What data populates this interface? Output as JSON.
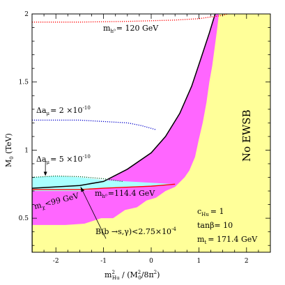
{
  "chart_data": {
    "type": "area",
    "xlabel": {
      "main": "m",
      "sup": "2",
      "sub": "Hu",
      "rest": " / (M",
      "sup2": "2",
      "sub2": "0",
      "rest2": "/8π",
      "sup3": "2",
      "end": ")"
    },
    "ylabel": {
      "main": "M",
      "sub": "0",
      "rest": " (TeV)"
    },
    "xlim": [
      -2.5,
      2.5
    ],
    "ylim": [
      0.25,
      2.0
    ],
    "x_ticks": [
      -2,
      -1,
      0,
      1,
      2
    ],
    "x_tick_labels": [
      "-2",
      "-1",
      "0",
      "1",
      "2"
    ],
    "y_ticks": [
      0.5,
      1.0,
      1.5,
      2.0
    ],
    "y_tick_labels": [
      "0.5",
      "1",
      "1.5",
      "2"
    ],
    "colors": {
      "no_ewsb": "#ffff99",
      "excluded": "#ff66ff",
      "gmuon_band": "#aaffff",
      "boundary": "#000000",
      "higgs_contour": "#ff0000",
      "gmuon_contour": "#0000cc",
      "dark_contour": "#006633"
    },
    "regions": {
      "no_ewsb_boundary": [
        [
          -2.5,
          0.25
        ],
        [
          -2.5,
          0.72
        ],
        [
          -1.5,
          0.74
        ],
        [
          -1.0,
          0.77
        ],
        [
          -0.5,
          0.86
        ],
        [
          0.0,
          0.98
        ],
        [
          0.3,
          1.1
        ],
        [
          0.6,
          1.27
        ],
        [
          0.85,
          1.47
        ],
        [
          1.05,
          1.68
        ],
        [
          1.22,
          1.86
        ],
        [
          1.34,
          2.0
        ]
      ],
      "excluded_edge": [
        [
          -2.5,
          0.45
        ],
        [
          -2.1,
          0.45
        ],
        [
          -1.8,
          0.45
        ],
        [
          -1.4,
          0.46
        ],
        [
          -1.05,
          0.5
        ],
        [
          -0.8,
          0.5
        ],
        [
          -0.55,
          0.56
        ],
        [
          -0.3,
          0.58
        ],
        [
          -0.1,
          0.63
        ],
        [
          0.1,
          0.65
        ],
        [
          0.3,
          0.7
        ],
        [
          0.5,
          0.73
        ],
        [
          0.7,
          0.8
        ],
        [
          0.8,
          0.85
        ],
        [
          0.92,
          0.95
        ],
        [
          1.0,
          1.08
        ],
        [
          1.08,
          1.2
        ],
        [
          1.16,
          1.35
        ],
        [
          1.22,
          1.5
        ],
        [
          1.28,
          1.62
        ],
        [
          1.33,
          1.75
        ],
        [
          1.38,
          1.88
        ],
        [
          1.42,
          2.0
        ]
      ],
      "gmuon_band_top": [
        [
          -2.5,
          0.8
        ],
        [
          -2.0,
          0.81
        ],
        [
          -1.5,
          0.8
        ],
        [
          -1.0,
          0.78
        ]
      ],
      "gmuon_band_bottom": [
        [
          -2.5,
          0.7
        ],
        [
          -1.5,
          0.7
        ],
        [
          -1.0,
          0.72
        ],
        [
          0.0,
          0.74
        ],
        [
          0.5,
          0.75
        ]
      ]
    },
    "series": [
      {
        "name": "m_h0 = 120 GeV",
        "style": "dotted",
        "color": "#ff0000",
        "points": [
          [
            -2.5,
            1.94
          ],
          [
            -1.5,
            1.94
          ],
          [
            -0.5,
            1.945
          ],
          [
            0.5,
            1.955
          ],
          [
            1.0,
            1.965
          ],
          [
            1.5,
            1.99
          ],
          [
            1.6,
            2.0
          ]
        ]
      },
      {
        "name": "Δa_μ = 2 ×10^-10",
        "style": "dotted",
        "color": "#0000cc",
        "points": [
          [
            -2.5,
            1.22
          ],
          [
            -1.5,
            1.22
          ],
          [
            -1.0,
            1.21
          ],
          [
            -0.5,
            1.2
          ],
          [
            -0.2,
            1.18
          ],
          [
            0.1,
            1.15
          ]
        ]
      },
      {
        "name": "Δa_μ = 5 ×10^-10",
        "style": "dotted",
        "color": "#006633",
        "points": [
          [
            -2.5,
            0.8
          ],
          [
            -2.0,
            0.81
          ],
          [
            -1.5,
            0.805
          ],
          [
            -1.0,
            0.79
          ],
          [
            -0.6,
            0.77
          ]
        ]
      },
      {
        "name": "m_h0 = 114.4 GeV",
        "style": "solid",
        "color": "#ff0000",
        "points": [
          [
            -2.5,
            0.71
          ],
          [
            -1.5,
            0.71
          ],
          [
            -1.0,
            0.72
          ],
          [
            0.0,
            0.735
          ],
          [
            0.5,
            0.75
          ]
        ]
      }
    ],
    "annotations": [
      {
        "id": "mh120",
        "text_main": "m",
        "text_sub": "h⁰",
        "text_rest": "= 120 GeV"
      },
      {
        "id": "da2",
        "text_main": "Δa",
        "text_sub": "μ",
        "text_rest": "= 2 ×10",
        "text_sup": "-10"
      },
      {
        "id": "da5",
        "text_main": "Δa",
        "text_sub": "μ",
        "text_rest": "= 5 ×10",
        "text_sup": "-10"
      },
      {
        "id": "mchi",
        "text_main": "m",
        "text_sub": "χ",
        "text_rest": "<99 GeV"
      },
      {
        "id": "mh114",
        "text_main": "m",
        "text_sub": "h⁰",
        "text_rest": "=114.4 GeV"
      },
      {
        "id": "bsg",
        "text_main": "B(b →s,γ)<2.75×10",
        "text_sup": "-4"
      },
      {
        "id": "noewsb",
        "text_main": "No EWSB"
      },
      {
        "id": "chu",
        "text_main": "c",
        "text_sub": "Hu",
        "text_rest": "= 1"
      },
      {
        "id": "tanb",
        "text_main": "tanβ= 10"
      },
      {
        "id": "mt",
        "text_main": "m",
        "text_sub": "t",
        "text_rest": "= 171.4 GeV"
      }
    ]
  }
}
